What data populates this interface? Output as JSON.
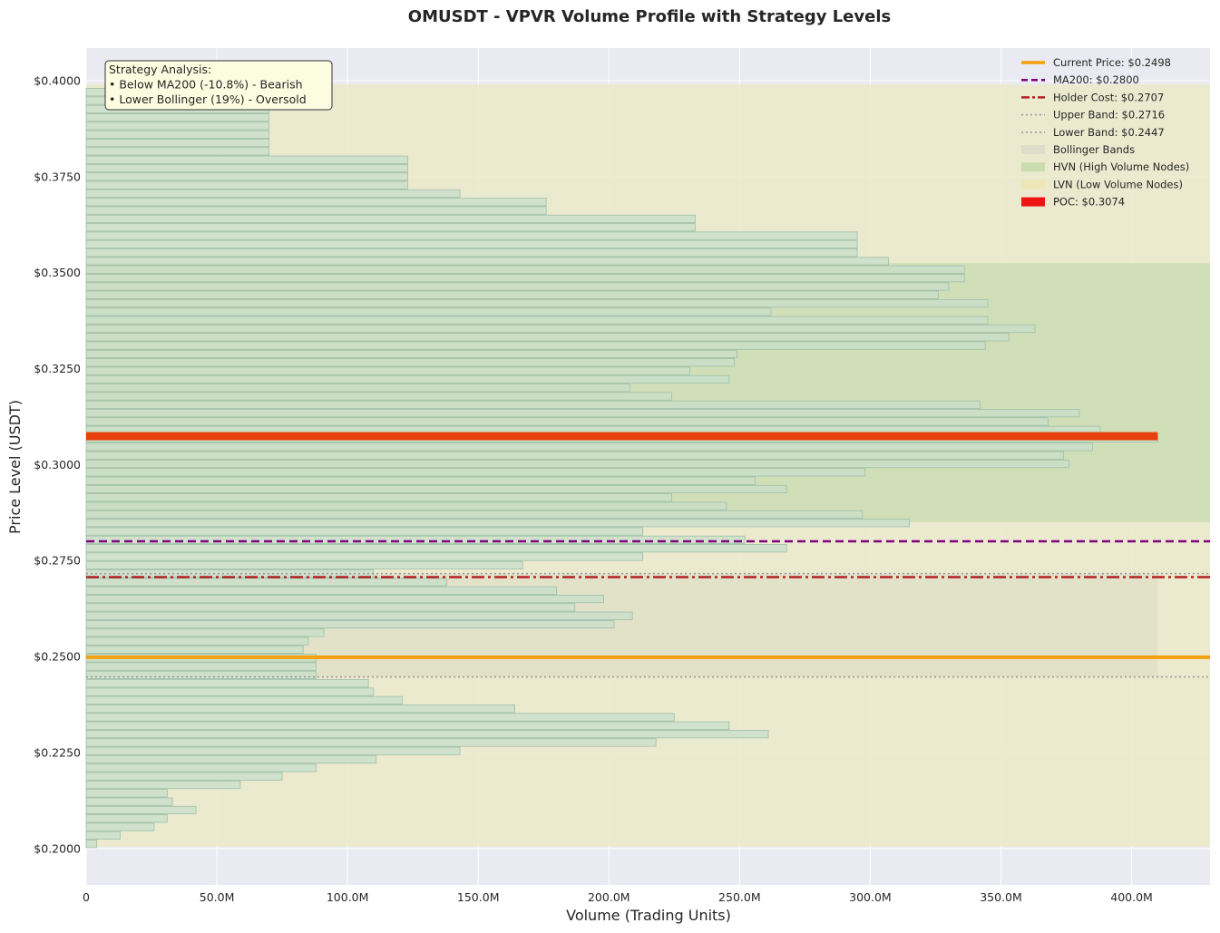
{
  "chart_data": {
    "type": "bar",
    "orientation": "horizontal",
    "title": "OMUSDT - VPVR Volume Profile with Strategy Levels",
    "xlabel": "Volume (Trading Units)",
    "ylabel": "Price Level (USDT)",
    "xlim": [
      0,
      430000000
    ],
    "ylim": [
      0.1905,
      0.4085
    ],
    "x_ticks": [
      0,
      50000000,
      100000000,
      150000000,
      200000000,
      250000000,
      300000000,
      350000000,
      400000000
    ],
    "x_tick_labels": [
      "0",
      "50.0M",
      "100.0M",
      "150.0M",
      "200.0M",
      "250.0M",
      "300.0M",
      "350.0M",
      "400.0M"
    ],
    "y_ticks": [
      0.2,
      0.225,
      0.25,
      0.275,
      0.3,
      0.325,
      0.35,
      0.375,
      0.4
    ],
    "y_tick_labels": [
      "$0.2000",
      "$0.2250",
      "$0.2500",
      "$0.2750",
      "$0.3000",
      "$0.3250",
      "$0.3500",
      "$0.3750",
      "$0.4000"
    ],
    "grid": true,
    "legend_position": "top-right",
    "series": [
      {
        "name": "Volume Profile",
        "bin_width": 0.0022,
        "prices": [
          0.2012,
          0.2034,
          0.2056,
          0.2078,
          0.21,
          0.2122,
          0.2144,
          0.2166,
          0.2188,
          0.221,
          0.2232,
          0.2254,
          0.2276,
          0.2298,
          0.232,
          0.2342,
          0.2364,
          0.2386,
          0.2408,
          0.243,
          0.2452,
          0.2474,
          0.2496,
          0.2518,
          0.254,
          0.2562,
          0.2584,
          0.2606,
          0.2628,
          0.265,
          0.2672,
          0.2694,
          0.2716,
          0.2738,
          0.276,
          0.2782,
          0.2804,
          0.2826,
          0.2848,
          0.287,
          0.2892,
          0.2914,
          0.2936,
          0.2958,
          0.298,
          0.3002,
          0.3024,
          0.3046,
          0.3068,
          0.309,
          0.3112,
          0.3134,
          0.3156,
          0.3178,
          0.32,
          0.3222,
          0.3244,
          0.3266,
          0.3288,
          0.331,
          0.3332,
          0.3354,
          0.3376,
          0.3398,
          0.342,
          0.3442,
          0.3464,
          0.3486,
          0.3508,
          0.353,
          0.3552,
          0.3574,
          0.3596,
          0.3618,
          0.364,
          0.3662,
          0.3684,
          0.3706,
          0.3728,
          0.375,
          0.3772,
          0.3794,
          0.3816,
          0.3838,
          0.386,
          0.3882,
          0.3904,
          0.3926,
          0.3948,
          0.397,
          0.3992
        ],
        "values": [
          4000000,
          13000000,
          26000000,
          31000000,
          42000000,
          33000000,
          31000000,
          59000000,
          75000000,
          88000000,
          111000000,
          143000000,
          218000000,
          261000000,
          246000000,
          225000000,
          164000000,
          121000000,
          110000000,
          108000000,
          88000000,
          88000000,
          88000000,
          83000000,
          85000000,
          91000000,
          202000000,
          209000000,
          187000000,
          198000000,
          180000000,
          138000000,
          110000000,
          167000000,
          213000000,
          268000000,
          252000000,
          213000000,
          315000000,
          297000000,
          245000000,
          224000000,
          268000000,
          256000000,
          298000000,
          376000000,
          374000000,
          385000000,
          410000000,
          388000000,
          368000000,
          380000000,
          342000000,
          224000000,
          208000000,
          246000000,
          231000000,
          248000000,
          249000000,
          344000000,
          353000000,
          363000000,
          345000000,
          262000000,
          345000000,
          326000000,
          330000000,
          336000000,
          336000000,
          307000000,
          295000000,
          295000000,
          295000000,
          233000000,
          233000000,
          176000000,
          176000000,
          143000000,
          123000000,
          123000000,
          123000000,
          123000000,
          70000000,
          70000000,
          70000000,
          70000000,
          70000000,
          70000000,
          70000000,
          70000000,
          0
        ]
      }
    ],
    "zones": {
      "lvn": [
        0.2005,
        0.399
      ],
      "hvn": [
        0.285,
        0.3525
      ],
      "bollinger": [
        0.2447,
        0.2716
      ]
    },
    "levels": [
      {
        "key": "current_price",
        "value": 0.2498,
        "color": "#f5a00f"
      },
      {
        "key": "ma200",
        "value": 0.28,
        "color": "#800080"
      },
      {
        "key": "holder_cost",
        "value": 0.2707,
        "color": "#b22222"
      },
      {
        "key": "upper_band",
        "value": 0.2716,
        "color": "#999999"
      },
      {
        "key": "lower_band",
        "value": 0.2447,
        "color": "#999999"
      },
      {
        "key": "poc",
        "value": 0.3074,
        "volume": 410000000,
        "color": "#e8400c"
      }
    ],
    "legend": [
      {
        "label": "Current Price: $0.2498",
        "style": "solid",
        "color": "#f5a00f"
      },
      {
        "label": "MA200: $0.2800",
        "style": "dashed",
        "color": "#800080"
      },
      {
        "label": "Holder Cost: $0.2707",
        "style": "dashdot",
        "color": "#b22222"
      },
      {
        "label": "Upper Band: $0.2716",
        "style": "dotted",
        "color": "#999999"
      },
      {
        "label": "Lower Band: $0.2447",
        "style": "dotted",
        "color": "#999999"
      },
      {
        "label": "Bollinger Bands",
        "style": "patch",
        "color": "#dcdcc8"
      },
      {
        "label": "HVN (High Volume Nodes)",
        "style": "patch",
        "color": "#c8dcaa"
      },
      {
        "label": "LVN (Low Volume Nodes)",
        "style": "patch",
        "color": "#f0e6b4"
      },
      {
        "label": "POC: $0.3074",
        "style": "patch",
        "color": "#f01414"
      }
    ],
    "annotation": {
      "lines": [
        "Strategy Analysis:",
        "• Below MA200 (-10.8%) - Bearish",
        "• Lower Bollinger (19%) - Oversold"
      ]
    },
    "colors": {
      "bar_fill": "#c9dfcb",
      "bar_edge": "#9fbfa8",
      "background": "#eaeaf2",
      "lvn_fill": "#ebeacb",
      "hvn_fill": "#cfdeb5",
      "bollinger_fill": "#e1e1c8"
    }
  }
}
